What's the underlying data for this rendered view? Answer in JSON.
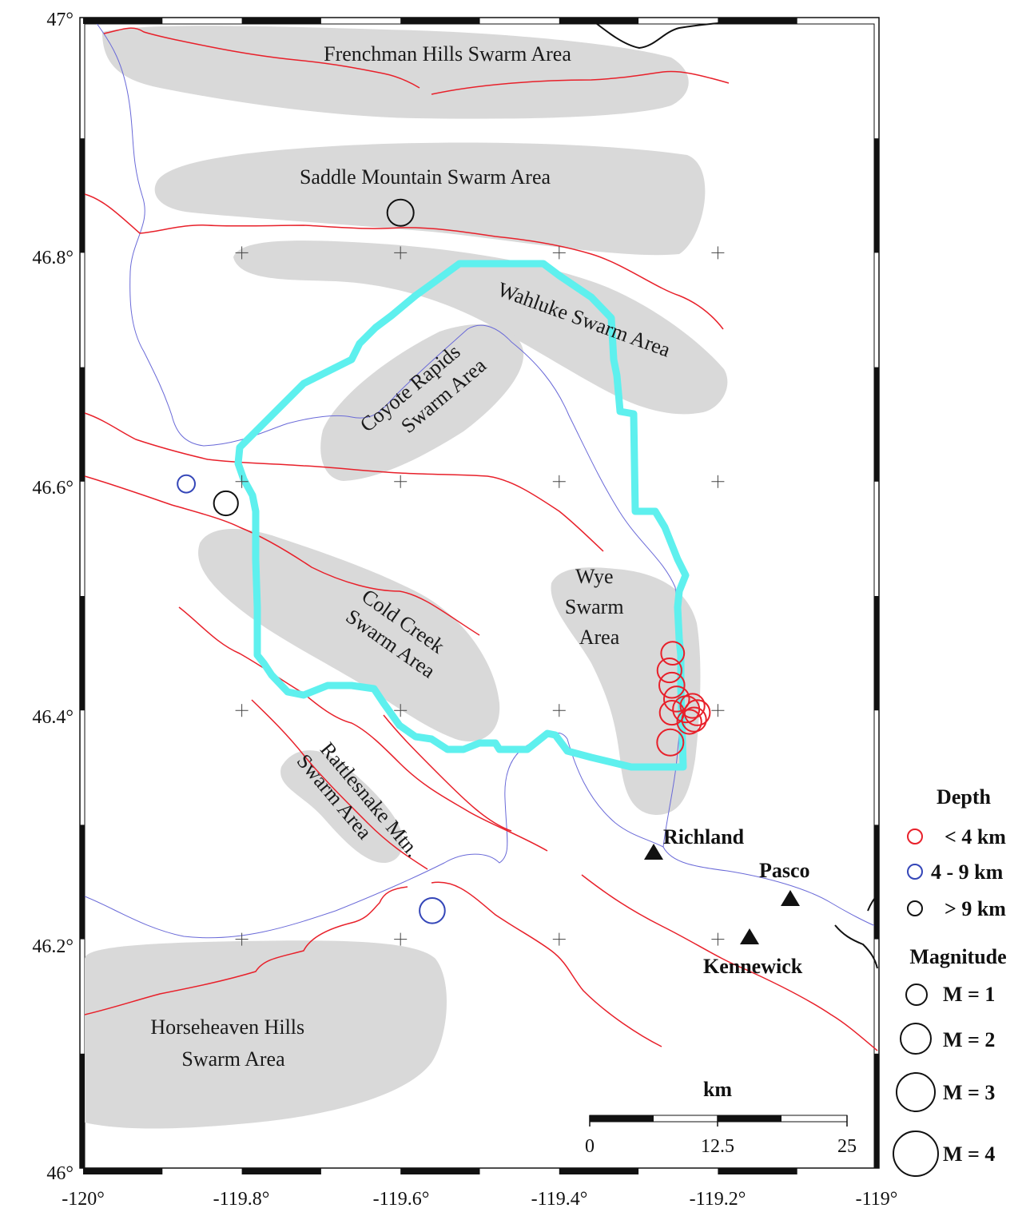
{
  "map": {
    "swarm_areas": [
      {
        "id": "frenchman",
        "lines": [
          "Frenchman Hills Swarm Area"
        ]
      },
      {
        "id": "saddle",
        "lines": [
          "Saddle Mountain Swarm Area"
        ]
      },
      {
        "id": "wahluke",
        "lines": [
          "Wahluke Swarm Area"
        ]
      },
      {
        "id": "coyote",
        "lines": [
          "Coyote Rapids",
          "Swarm Area"
        ]
      },
      {
        "id": "coldcreek",
        "lines": [
          "Cold Creek",
          "Swarm Area"
        ]
      },
      {
        "id": "wye",
        "lines": [
          "Wye",
          "Swarm",
          "Area"
        ]
      },
      {
        "id": "rattlesnake",
        "lines": [
          "Rattlesnake Mtn.",
          "Swarm Area"
        ]
      },
      {
        "id": "horseheaven",
        "lines": [
          "Horseheaven Hills",
          "Swarm Area"
        ]
      }
    ],
    "cities": [
      {
        "name": "Richland",
        "lon": -119.28,
        "lat": 46.28
      },
      {
        "name": "Pasco",
        "lon": -119.11,
        "lat": 46.24
      },
      {
        "name": "Kennewick",
        "lon": -119.16,
        "lat": 46.21
      }
    ],
    "lat_ticks": [
      "47°",
      "46.8°",
      "46.6°",
      "46.4°",
      "46.2°",
      "46°"
    ],
    "lon_ticks": [
      "-120°",
      "-119.8°",
      "-119.6°",
      "-119.4°",
      "-119.2°",
      "-119°"
    ],
    "extent": {
      "lon": [
        -120.0,
        -119.0
      ],
      "lat": [
        46.0,
        47.0
      ]
    },
    "earthquakes": [
      {
        "lon": -119.6,
        "lat": 46.835,
        "depth": "deep",
        "magnitude": 1.5
      },
      {
        "lon": -119.87,
        "lat": 46.598,
        "depth": "mid",
        "magnitude": 0.7
      },
      {
        "lon": -119.82,
        "lat": 46.581,
        "depth": "deep",
        "magnitude": 1.3
      },
      {
        "lon": -119.56,
        "lat": 46.225,
        "depth": "mid",
        "magnitude": 1.4
      },
      {
        "lon": -119.257,
        "lat": 46.45,
        "depth": "shallow",
        "magnitude": 1.2
      },
      {
        "lon": -119.261,
        "lat": 46.435,
        "depth": "shallow",
        "magnitude": 1.3
      },
      {
        "lon": -119.258,
        "lat": 46.422,
        "depth": "shallow",
        "magnitude": 1.4
      },
      {
        "lon": -119.252,
        "lat": 46.41,
        "depth": "shallow",
        "magnitude": 1.4
      },
      {
        "lon": -119.258,
        "lat": 46.398,
        "depth": "shallow",
        "magnitude": 1.3
      },
      {
        "lon": -119.232,
        "lat": 46.404,
        "depth": "shallow",
        "magnitude": 1.3
      },
      {
        "lon": -119.226,
        "lat": 46.398,
        "depth": "shallow",
        "magnitude": 1.4
      },
      {
        "lon": -119.236,
        "lat": 46.39,
        "depth": "shallow",
        "magnitude": 1.3
      },
      {
        "lon": -119.24,
        "lat": 46.401,
        "depth": "shallow",
        "magnitude": 1.5
      },
      {
        "lon": -119.23,
        "lat": 46.392,
        "depth": "shallow",
        "magnitude": 1.3
      },
      {
        "lon": -119.26,
        "lat": 46.372,
        "depth": "shallow",
        "magnitude": 1.5
      }
    ]
  },
  "legend": {
    "depth_title": "Depth",
    "depth_items": [
      {
        "label": "< 4 km",
        "color": "#e8202a"
      },
      {
        "label": "4 - 9 km",
        "color": "#3446b8"
      },
      {
        "label": "> 9 km",
        "color": "#111111"
      }
    ],
    "magnitude_title": "Magnitude",
    "magnitude_items": [
      {
        "label": "M = 1",
        "value": 1
      },
      {
        "label": "M = 2",
        "value": 2
      },
      {
        "label": "M = 3",
        "value": 3
      },
      {
        "label": "M = 4",
        "value": 4
      }
    ]
  },
  "scale_bar": {
    "unit": "km",
    "ticks": [
      "0",
      "12.5",
      "25"
    ]
  },
  "colors": {
    "swarm_fill": "#d9d9d9",
    "fault": "#e8202a",
    "river": "#6a6ad8",
    "hanford_boundary": "#5ef0ee",
    "coast": "#111111"
  }
}
